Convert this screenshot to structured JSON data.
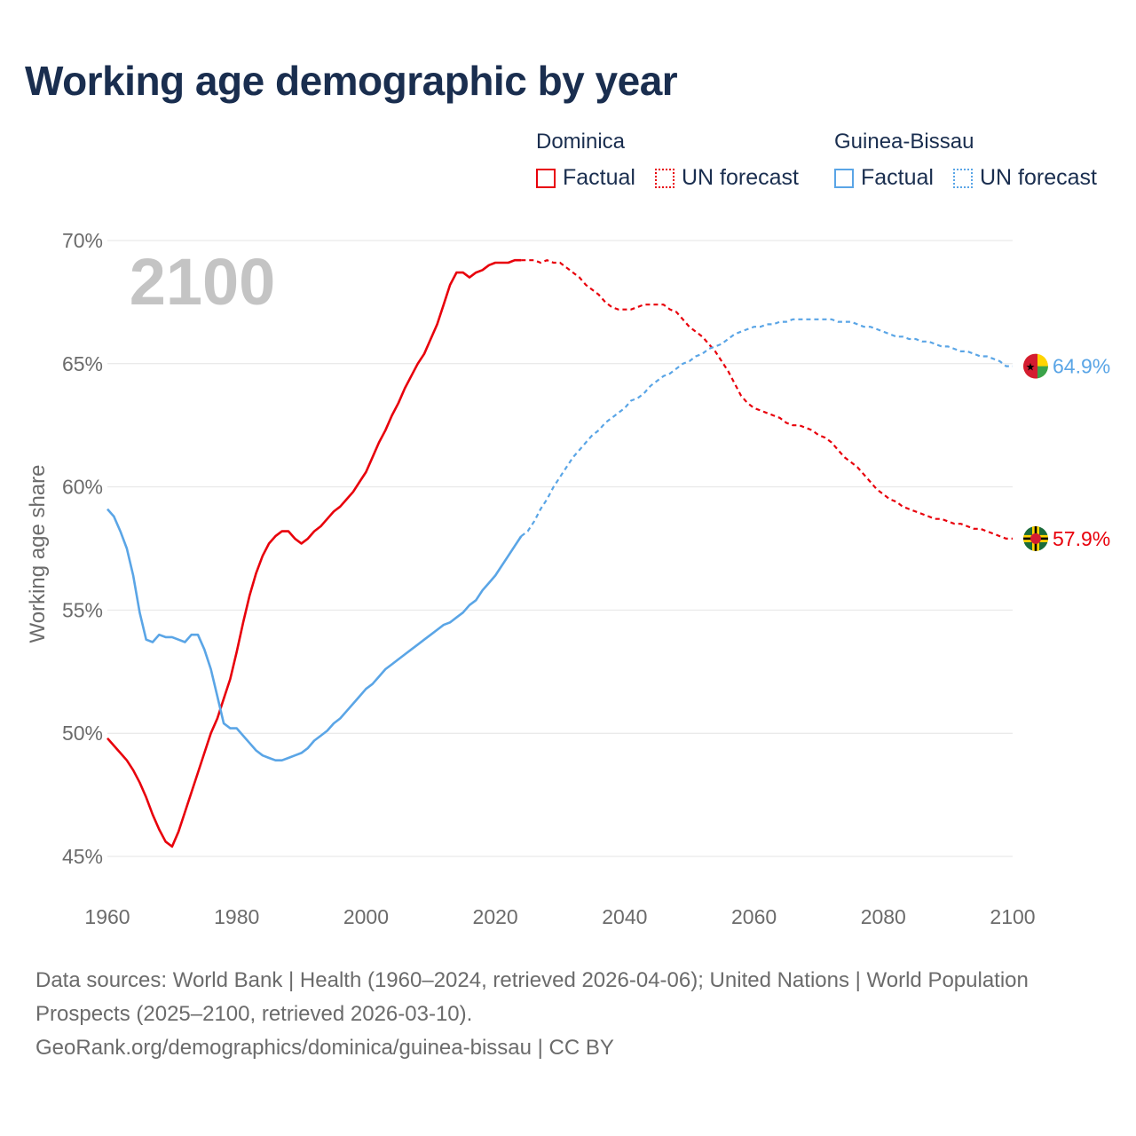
{
  "title": "Working age demographic by year",
  "legend": {
    "groups": [
      {
        "name": "Dominica",
        "factual_label": "Factual",
        "forecast_label": "UN forecast",
        "color": "#e8000b"
      },
      {
        "name": "Guinea-Bissau",
        "factual_label": "Factual",
        "forecast_label": "UN forecast",
        "color": "#5aa5e6"
      }
    ]
  },
  "year_watermark": "2100",
  "footer": {
    "sources": "Data sources: World Bank | Health (1960–2024, retrieved 2026-04-06); United Nations | World Population Prospects (2025–2100, retrieved 2026-03-10).",
    "url": "GeoRank.org/demographics/dominica/guinea-bissau | CC BY"
  },
  "chart_data": {
    "type": "line",
    "title": "Working age demographic by year",
    "xlabel": "",
    "ylabel": "Working age share",
    "xlim": [
      1960,
      2100
    ],
    "ylim": [
      45,
      70
    ],
    "x_ticks": [
      1960,
      1980,
      2000,
      2020,
      2040,
      2060,
      2080,
      2100
    ],
    "y_ticks": [
      45,
      50,
      55,
      60,
      65,
      70
    ],
    "y_tick_labels": [
      "45%",
      "50%",
      "55%",
      "60%",
      "65%",
      "70%"
    ],
    "x_tick_labels": [
      "1960",
      "1980",
      "2000",
      "2020",
      "2040",
      "2060",
      "2080",
      "2100"
    ],
    "factual_end_year": 2024,
    "grid": true,
    "series": [
      {
        "name": "Dominica",
        "color": "#e8000b",
        "end_label": "57.9%",
        "points": [
          [
            1960,
            49.8
          ],
          [
            1961,
            49.5
          ],
          [
            1962,
            49.2
          ],
          [
            1963,
            48.9
          ],
          [
            1964,
            48.5
          ],
          [
            1965,
            48.0
          ],
          [
            1966,
            47.4
          ],
          [
            1967,
            46.7
          ],
          [
            1968,
            46.1
          ],
          [
            1969,
            45.6
          ],
          [
            1970,
            45.4
          ],
          [
            1971,
            46.0
          ],
          [
            1972,
            46.8
          ],
          [
            1973,
            47.6
          ],
          [
            1974,
            48.4
          ],
          [
            1975,
            49.2
          ],
          [
            1976,
            50.0
          ],
          [
            1977,
            50.6
          ],
          [
            1978,
            51.4
          ],
          [
            1979,
            52.2
          ],
          [
            1980,
            53.3
          ],
          [
            1981,
            54.5
          ],
          [
            1982,
            55.6
          ],
          [
            1983,
            56.5
          ],
          [
            1984,
            57.2
          ],
          [
            1985,
            57.7
          ],
          [
            1986,
            58.0
          ],
          [
            1987,
            58.2
          ],
          [
            1988,
            58.2
          ],
          [
            1989,
            57.9
          ],
          [
            1990,
            57.7
          ],
          [
            1991,
            57.9
          ],
          [
            1992,
            58.2
          ],
          [
            1993,
            58.4
          ],
          [
            1994,
            58.7
          ],
          [
            1995,
            59.0
          ],
          [
            1996,
            59.2
          ],
          [
            1997,
            59.5
          ],
          [
            1998,
            59.8
          ],
          [
            1999,
            60.2
          ],
          [
            2000,
            60.6
          ],
          [
            2001,
            61.2
          ],
          [
            2002,
            61.8
          ],
          [
            2003,
            62.3
          ],
          [
            2004,
            62.9
          ],
          [
            2005,
            63.4
          ],
          [
            2006,
            64.0
          ],
          [
            2007,
            64.5
          ],
          [
            2008,
            65.0
          ],
          [
            2009,
            65.4
          ],
          [
            2010,
            66.0
          ],
          [
            2011,
            66.6
          ],
          [
            2012,
            67.4
          ],
          [
            2013,
            68.2
          ],
          [
            2014,
            68.7
          ],
          [
            2015,
            68.7
          ],
          [
            2016,
            68.5
          ],
          [
            2017,
            68.7
          ],
          [
            2018,
            68.8
          ],
          [
            2019,
            69.0
          ],
          [
            2020,
            69.1
          ],
          [
            2021,
            69.1
          ],
          [
            2022,
            69.1
          ],
          [
            2023,
            69.2
          ],
          [
            2024,
            69.2
          ],
          [
            2025,
            69.2
          ],
          [
            2026,
            69.2
          ],
          [
            2027,
            69.1
          ],
          [
            2028,
            69.2
          ],
          [
            2029,
            69.1
          ],
          [
            2030,
            69.1
          ],
          [
            2031,
            68.9
          ],
          [
            2032,
            68.7
          ],
          [
            2033,
            68.5
          ],
          [
            2034,
            68.2
          ],
          [
            2035,
            68.0
          ],
          [
            2036,
            67.8
          ],
          [
            2037,
            67.5
          ],
          [
            2038,
            67.3
          ],
          [
            2039,
            67.2
          ],
          [
            2040,
            67.2
          ],
          [
            2041,
            67.2
          ],
          [
            2042,
            67.3
          ],
          [
            2043,
            67.4
          ],
          [
            2044,
            67.4
          ],
          [
            2045,
            67.4
          ],
          [
            2046,
            67.4
          ],
          [
            2047,
            67.2
          ],
          [
            2048,
            67.1
          ],
          [
            2049,
            66.8
          ],
          [
            2050,
            66.5
          ],
          [
            2051,
            66.3
          ],
          [
            2052,
            66.1
          ],
          [
            2053,
            65.8
          ],
          [
            2054,
            65.5
          ],
          [
            2055,
            65.1
          ],
          [
            2056,
            64.7
          ],
          [
            2057,
            64.2
          ],
          [
            2058,
            63.7
          ],
          [
            2059,
            63.4
          ],
          [
            2060,
            63.2
          ],
          [
            2061,
            63.1
          ],
          [
            2062,
            63.0
          ],
          [
            2063,
            62.9
          ],
          [
            2064,
            62.8
          ],
          [
            2065,
            62.6
          ],
          [
            2066,
            62.5
          ],
          [
            2067,
            62.5
          ],
          [
            2068,
            62.4
          ],
          [
            2069,
            62.3
          ],
          [
            2070,
            62.1
          ],
          [
            2071,
            62.0
          ],
          [
            2072,
            61.8
          ],
          [
            2073,
            61.5
          ],
          [
            2074,
            61.2
          ],
          [
            2075,
            61.0
          ],
          [
            2076,
            60.8
          ],
          [
            2077,
            60.5
          ],
          [
            2078,
            60.2
          ],
          [
            2079,
            59.9
          ],
          [
            2080,
            59.7
          ],
          [
            2081,
            59.5
          ],
          [
            2082,
            59.4
          ],
          [
            2083,
            59.2
          ],
          [
            2084,
            59.1
          ],
          [
            2085,
            59.0
          ],
          [
            2086,
            58.9
          ],
          [
            2087,
            58.8
          ],
          [
            2088,
            58.7
          ],
          [
            2089,
            58.7
          ],
          [
            2090,
            58.6
          ],
          [
            2091,
            58.5
          ],
          [
            2092,
            58.5
          ],
          [
            2093,
            58.4
          ],
          [
            2094,
            58.3
          ],
          [
            2095,
            58.3
          ],
          [
            2096,
            58.2
          ],
          [
            2097,
            58.1
          ],
          [
            2098,
            58.0
          ],
          [
            2099,
            57.9
          ],
          [
            2100,
            57.9
          ]
        ]
      },
      {
        "name": "Guinea-Bissau",
        "color": "#5aa5e6",
        "end_label": "64.9%",
        "points": [
          [
            1960,
            59.1
          ],
          [
            1961,
            58.8
          ],
          [
            1962,
            58.2
          ],
          [
            1963,
            57.5
          ],
          [
            1964,
            56.4
          ],
          [
            1965,
            54.9
          ],
          [
            1966,
            53.8
          ],
          [
            1967,
            53.7
          ],
          [
            1968,
            54.0
          ],
          [
            1969,
            53.9
          ],
          [
            1970,
            53.9
          ],
          [
            1971,
            53.8
          ],
          [
            1972,
            53.7
          ],
          [
            1973,
            54.0
          ],
          [
            1974,
            54.0
          ],
          [
            1975,
            53.4
          ],
          [
            1976,
            52.6
          ],
          [
            1977,
            51.5
          ],
          [
            1978,
            50.4
          ],
          [
            1979,
            50.2
          ],
          [
            1980,
            50.2
          ],
          [
            1981,
            49.9
          ],
          [
            1982,
            49.6
          ],
          [
            1983,
            49.3
          ],
          [
            1984,
            49.1
          ],
          [
            1985,
            49.0
          ],
          [
            1986,
            48.9
          ],
          [
            1987,
            48.9
          ],
          [
            1988,
            49.0
          ],
          [
            1989,
            49.1
          ],
          [
            1990,
            49.2
          ],
          [
            1991,
            49.4
          ],
          [
            1992,
            49.7
          ],
          [
            1993,
            49.9
          ],
          [
            1994,
            50.1
          ],
          [
            1995,
            50.4
          ],
          [
            1996,
            50.6
          ],
          [
            1997,
            50.9
          ],
          [
            1998,
            51.2
          ],
          [
            1999,
            51.5
          ],
          [
            2000,
            51.8
          ],
          [
            2001,
            52.0
          ],
          [
            2002,
            52.3
          ],
          [
            2003,
            52.6
          ],
          [
            2004,
            52.8
          ],
          [
            2005,
            53.0
          ],
          [
            2006,
            53.2
          ],
          [
            2007,
            53.4
          ],
          [
            2008,
            53.6
          ],
          [
            2009,
            53.8
          ],
          [
            2010,
            54.0
          ],
          [
            2011,
            54.2
          ],
          [
            2012,
            54.4
          ],
          [
            2013,
            54.5
          ],
          [
            2014,
            54.7
          ],
          [
            2015,
            54.9
          ],
          [
            2016,
            55.2
          ],
          [
            2017,
            55.4
          ],
          [
            2018,
            55.8
          ],
          [
            2019,
            56.1
          ],
          [
            2020,
            56.4
          ],
          [
            2021,
            56.8
          ],
          [
            2022,
            57.2
          ],
          [
            2023,
            57.6
          ],
          [
            2024,
            58.0
          ],
          [
            2025,
            58.2
          ],
          [
            2026,
            58.6
          ],
          [
            2027,
            59.1
          ],
          [
            2028,
            59.5
          ],
          [
            2029,
            60.0
          ],
          [
            2030,
            60.4
          ],
          [
            2031,
            60.8
          ],
          [
            2032,
            61.2
          ],
          [
            2033,
            61.5
          ],
          [
            2034,
            61.8
          ],
          [
            2035,
            62.1
          ],
          [
            2036,
            62.3
          ],
          [
            2037,
            62.6
          ],
          [
            2038,
            62.8
          ],
          [
            2039,
            63.0
          ],
          [
            2040,
            63.2
          ],
          [
            2041,
            63.5
          ],
          [
            2042,
            63.6
          ],
          [
            2043,
            63.8
          ],
          [
            2044,
            64.1
          ],
          [
            2045,
            64.3
          ],
          [
            2046,
            64.5
          ],
          [
            2047,
            64.6
          ],
          [
            2048,
            64.8
          ],
          [
            2049,
            65.0
          ],
          [
            2050,
            65.1
          ],
          [
            2051,
            65.3
          ],
          [
            2052,
            65.4
          ],
          [
            2053,
            65.6
          ],
          [
            2054,
            65.7
          ],
          [
            2055,
            65.8
          ],
          [
            2056,
            66.0
          ],
          [
            2057,
            66.2
          ],
          [
            2058,
            66.3
          ],
          [
            2059,
            66.4
          ],
          [
            2060,
            66.5
          ],
          [
            2061,
            66.5
          ],
          [
            2062,
            66.6
          ],
          [
            2063,
            66.6
          ],
          [
            2064,
            66.7
          ],
          [
            2065,
            66.7
          ],
          [
            2066,
            66.8
          ],
          [
            2067,
            66.8
          ],
          [
            2068,
            66.8
          ],
          [
            2069,
            66.8
          ],
          [
            2070,
            66.8
          ],
          [
            2071,
            66.8
          ],
          [
            2072,
            66.8
          ],
          [
            2073,
            66.7
          ],
          [
            2074,
            66.7
          ],
          [
            2075,
            66.7
          ],
          [
            2076,
            66.6
          ],
          [
            2077,
            66.5
          ],
          [
            2078,
            66.5
          ],
          [
            2079,
            66.4
          ],
          [
            2080,
            66.3
          ],
          [
            2081,
            66.2
          ],
          [
            2082,
            66.1
          ],
          [
            2083,
            66.1
          ],
          [
            2084,
            66.0
          ],
          [
            2085,
            66.0
          ],
          [
            2086,
            65.9
          ],
          [
            2087,
            65.9
          ],
          [
            2088,
            65.8
          ],
          [
            2089,
            65.7
          ],
          [
            2090,
            65.7
          ],
          [
            2091,
            65.6
          ],
          [
            2092,
            65.5
          ],
          [
            2093,
            65.5
          ],
          [
            2094,
            65.4
          ],
          [
            2095,
            65.3
          ],
          [
            2096,
            65.3
          ],
          [
            2097,
            65.2
          ],
          [
            2098,
            65.1
          ],
          [
            2099,
            64.9
          ],
          [
            2100,
            64.9
          ]
        ]
      }
    ]
  }
}
